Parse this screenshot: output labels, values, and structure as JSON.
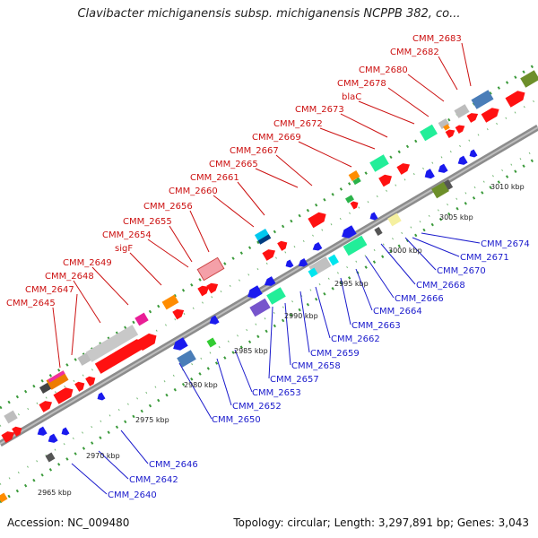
{
  "title": "Clavibacter michiganensis subsp. michiganensis NCPPB 382, co...",
  "footer": {
    "accession": "Accession: NC_009480",
    "stats": "Topology: circular; Length: 3,297,891 bp; Genes: 3,043"
  },
  "ticks": [
    "2965 kbp",
    "2970 kbp",
    "2975 kbp",
    "2980 kbp",
    "2985 kbp",
    "2990 kbp",
    "2995 kbp",
    "3000 kbp",
    "3005 kbp",
    "3010 kbp"
  ],
  "top_labels": [
    "CMM_2683",
    "CMM_2682",
    "CMM_2680",
    "CMM_2678",
    "blaC",
    "CMM_2673",
    "CMM_2672",
    "CMM_2669",
    "CMM_2667",
    "CMM_2665",
    "CMM_2661",
    "CMM_2660",
    "CMM_2656",
    "CMM_2655",
    "CMM_2654",
    "sigF",
    "CMM_2649",
    "CMM_2648",
    "CMM_2647",
    "CMM_2645"
  ],
  "bottom_labels": [
    "CMM_2674",
    "CMM_2671",
    "CMM_2670",
    "CMM_2668",
    "CMM_2666",
    "CMM_2664",
    "CMM_2663",
    "CMM_2662",
    "CMM_2659",
    "CMM_2658",
    "CMM_2657",
    "CMM_2653",
    "CMM_2652",
    "CMM_2650",
    "CMM_2646",
    "CMM_2642",
    "CMM_2640"
  ],
  "colors": {
    "label_top": "#cc1111",
    "label_bottom": "#1a1acc",
    "backbone": "#8c8c8c",
    "dots": "#3a9a3a"
  }
}
